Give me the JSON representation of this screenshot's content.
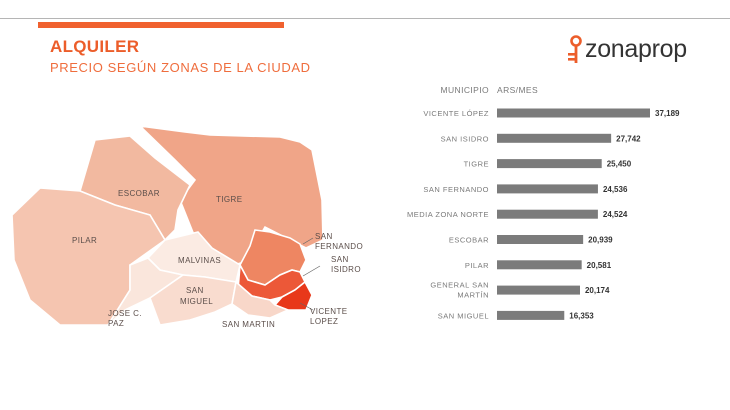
{
  "header": {
    "title": "ALQUILER",
    "subtitle": "PRECIO SEGÚN ZONAS DE LA CIUDAD",
    "logo_text": "zonaprop"
  },
  "colors": {
    "accent": "#ec5d2a",
    "bar": "#7b7b7b",
    "label": "#7a7a7a",
    "value": "#333333"
  },
  "map": {
    "labels": {
      "escobar": "ESCOBAR",
      "tigre": "TIGRE",
      "pilar": "PILAR",
      "malvinas": "MALVINAS",
      "san_miguel_1": "SAN",
      "san_miguel_2": "MIGUEL",
      "jose_c_paz_1": "JOSE C.",
      "jose_c_paz_2": "PAZ",
      "san_fernando_1": "SAN",
      "san_fernando_2": "FERNANDO",
      "san_isidro_1": "SAN",
      "san_isidro_2": "ISIDRO",
      "vicente_lopez_1": "VICENTE",
      "vicente_lopez_2": "LOPEZ",
      "san_martin": "SAN MARTIN"
    },
    "fills": {
      "escobar": "#f2b9a0",
      "tigre": "#f0a588",
      "pilar": "#f5c5b0",
      "malvinas": "#fbebe3",
      "san_miguel": "#f9dccf",
      "jose_c_paz": "#fae6dc",
      "san_fernando": "#ee8662",
      "san_isidro": "#ec5838",
      "vicente_lopez": "#e8381a",
      "san_martin": "#f8d7c9"
    }
  },
  "chart_data": {
    "type": "bar",
    "orientation": "horizontal",
    "column_headers": [
      "MUNICIPIO",
      "ARS/MES"
    ],
    "categories": [
      "VICENTE LÓPEZ",
      "SAN ISIDRO",
      "TIGRE",
      "SAN FERNANDO",
      "MEDIA ZONA NORTE",
      "ESCOBAR",
      "PILAR",
      [
        "GENERAL SAN",
        "MARTÍN"
      ],
      "SAN MIGUEL"
    ],
    "values": [
      37189,
      27742,
      25450,
      24536,
      24524,
      20939,
      20581,
      20174,
      16353
    ],
    "value_labels": [
      "37,189",
      "27,742",
      "25,450",
      "24,536",
      "24,524",
      "20,939",
      "20,581",
      "20,174",
      "16,353"
    ]
  }
}
